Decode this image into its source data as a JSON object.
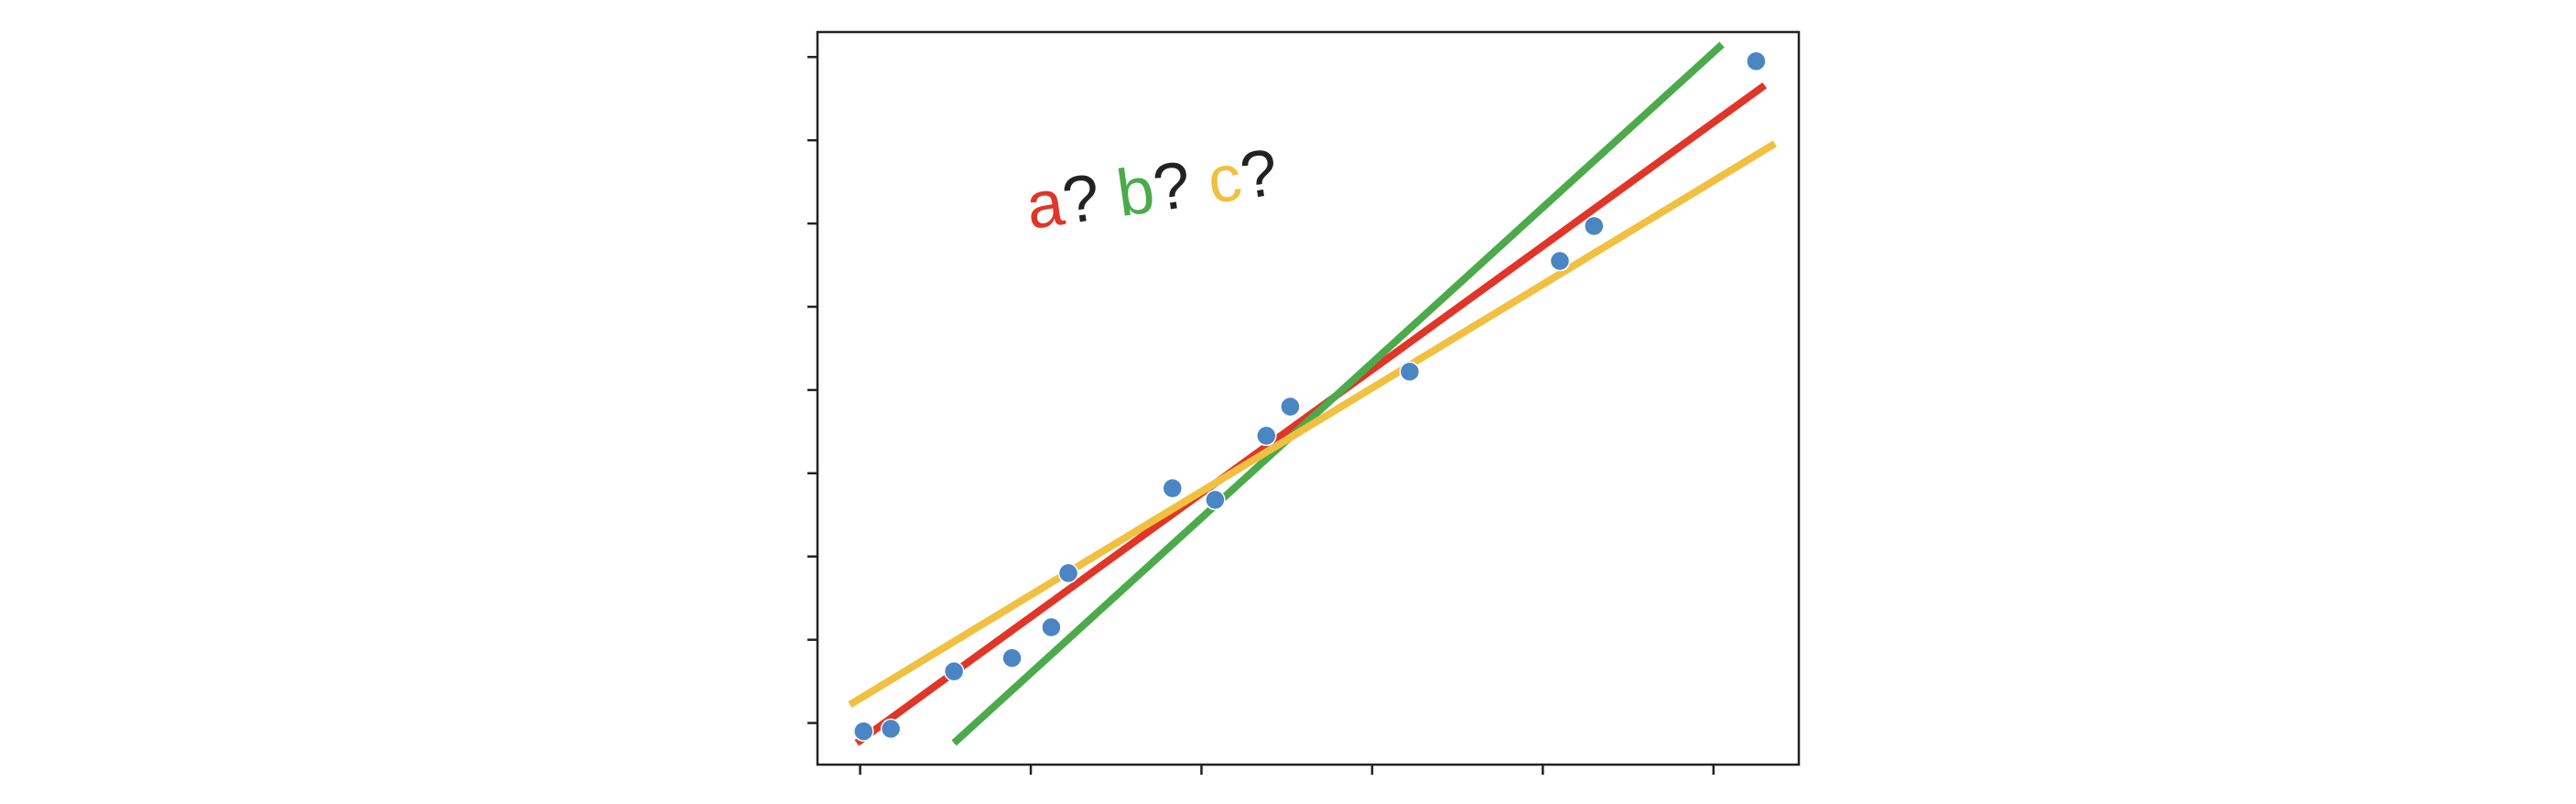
{
  "chart_data": {
    "type": "scatter",
    "title": "",
    "xlabel": "",
    "ylabel": "",
    "xlim": [
      -0.25,
      5.5
    ],
    "ylim": [
      -0.5,
      8.3
    ],
    "xticks": [
      0,
      1,
      2,
      3,
      4,
      5
    ],
    "yticks": [
      0,
      1,
      2,
      3,
      4,
      5,
      6,
      7,
      8
    ],
    "tick_labels_shown": false,
    "grid": false,
    "points": {
      "color": "#4a86c4",
      "x": [
        0.02,
        0.18,
        0.55,
        0.89,
        1.12,
        1.22,
        1.83,
        2.08,
        2.38,
        2.52,
        3.22,
        4.1,
        4.3,
        5.25
      ],
      "y": [
        -0.1,
        -0.07,
        0.62,
        0.78,
        1.15,
        1.8,
        2.82,
        2.68,
        3.45,
        3.8,
        4.22,
        5.55,
        5.97,
        7.95
      ]
    },
    "lines": [
      {
        "key": "a",
        "color": "#e03527",
        "x": [
          -0.02,
          5.3
        ],
        "y": [
          -0.24,
          7.66
        ]
      },
      {
        "key": "b",
        "color": "#4caa4c",
        "x": [
          0.55,
          5.05
        ],
        "y": [
          -0.24,
          8.15
        ]
      },
      {
        "key": "c",
        "color": "#f2c040",
        "x": [
          -0.06,
          5.36
        ],
        "y": [
          0.22,
          6.96
        ]
      }
    ],
    "annotation": {
      "parts": [
        {
          "text": "a",
          "color": "#e03527"
        },
        {
          "text": "?",
          "color": "#222222"
        },
        {
          "text": " ",
          "color": "#222222"
        },
        {
          "text": "b",
          "color": "#4caa4c"
        },
        {
          "text": "?",
          "color": "#222222"
        },
        {
          "text": " ",
          "color": "#222222"
        },
        {
          "text": "c",
          "color": "#f2c040"
        },
        {
          "text": "?",
          "color": "#222222"
        }
      ]
    }
  }
}
